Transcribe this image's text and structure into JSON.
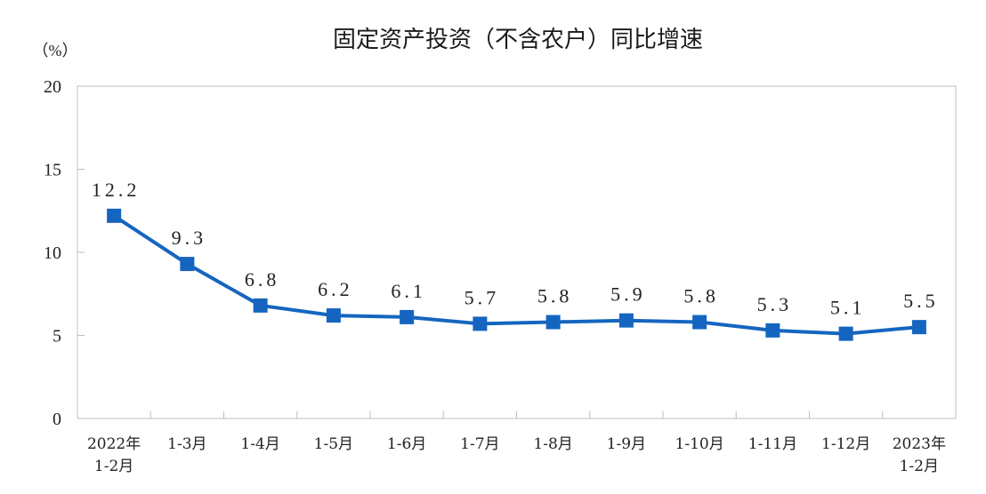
{
  "chart_data": {
    "type": "line",
    "title": "固定资产投资（不含农户）同比增速",
    "ylabel": "（%）",
    "xlabel": "",
    "ylim": [
      0,
      20
    ],
    "yticks": [
      "0",
      "5",
      "10",
      "15",
      "20"
    ],
    "grid": false,
    "categories": [
      [
        "2022年",
        "1-2月"
      ],
      [
        "1-3月"
      ],
      [
        "1-4月"
      ],
      [
        "1-5月"
      ],
      [
        "1-6月"
      ],
      [
        "1-7月"
      ],
      [
        "1-8月"
      ],
      [
        "1-9月"
      ],
      [
        "1-10月"
      ],
      [
        "1-11月"
      ],
      [
        "1-12月"
      ],
      [
        "2023年",
        "1-2月"
      ]
    ],
    "values": [
      12.2,
      9.3,
      6.8,
      6.2,
      6.1,
      5.7,
      5.8,
      5.9,
      5.8,
      5.3,
      5.1,
      5.5
    ],
    "data_labels": [
      "12.2",
      "9.3",
      "6.8",
      "6.2",
      "6.1",
      "5.7",
      "5.8",
      "5.9",
      "5.8",
      "5.3",
      "5.1",
      "5.5"
    ],
    "line_color": "#1565c0",
    "axis_color": "#bdbdbd"
  }
}
